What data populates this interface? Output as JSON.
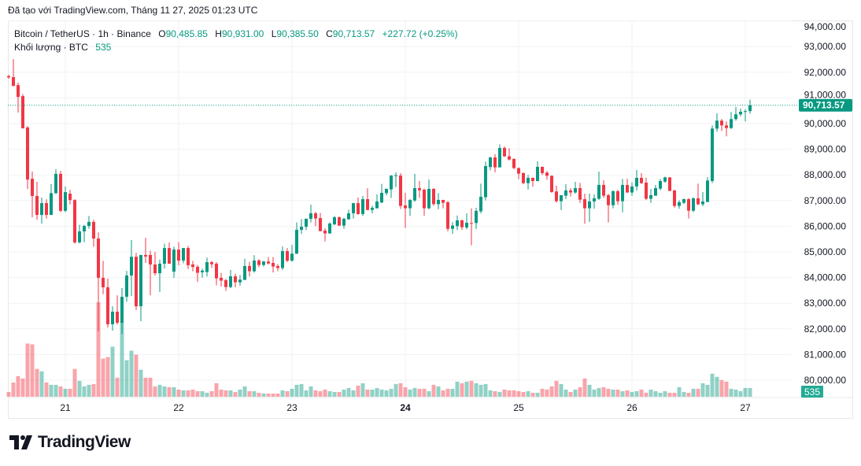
{
  "header": {
    "created_text": "Đã tạo với TradingView.com, Tháng 11 27, 2025 01:23 UTC"
  },
  "legend": {
    "symbol": "Bitcoin / TetherUS · 1h · Binance",
    "o_label": "O",
    "o_value": "90,485.85",
    "h_label": "H",
    "h_value": "90,931.00",
    "l_label": "L",
    "l_value": "90,385.50",
    "c_label": "C",
    "c_value": "90,713.57",
    "change": "+227.72 (+0.25%)",
    "volume_label": "Khối lượng · BTC",
    "volume_value": "535"
  },
  "price_label": "90,713.57",
  "volume_tag": "535",
  "logo": {
    "text": "TradingView"
  },
  "colors": {
    "up": "#089981",
    "down": "#F23645",
    "grid": "#f0f1f3"
  },
  "chart_data": {
    "type": "candlestick",
    "interval": "1h",
    "y_ticks": [
      "80,000.00",
      "81,000.00",
      "82,000.00",
      "83,000.00",
      "84,000.00",
      "85,000.00",
      "86,000.00",
      "87,000.00",
      "88,000.00",
      "89,000.00",
      "90,000.00",
      "91,000.00",
      "92,000.00",
      "93,000.00",
      "94,000.00"
    ],
    "y_tick_values": [
      80000,
      81000,
      82000,
      83000,
      84000,
      85000,
      86000,
      87000,
      88000,
      89000,
      90000,
      91000,
      92000,
      93000,
      94000
    ],
    "x_ticks": [
      {
        "label": "21",
        "index": 12
      },
      {
        "label": "22",
        "index": 36
      },
      {
        "label": "23",
        "index": 60
      },
      {
        "label": "24",
        "index": 84,
        "bold": true
      },
      {
        "label": "25",
        "index": 108
      },
      {
        "label": "26",
        "index": 132
      },
      {
        "label": "27",
        "index": 156
      }
    ],
    "last_price": 90713.57,
    "grid": true,
    "ohlc": [
      [
        91850,
        91900,
        91750,
        91800
      ],
      [
        91810,
        92510,
        91450,
        91470
      ],
      [
        91500,
        91600,
        90430,
        91040
      ],
      [
        91070,
        91150,
        89800,
        89820
      ],
      [
        89850,
        89900,
        87450,
        87820
      ],
      [
        87850,
        88130,
        86350,
        87180
      ],
      [
        87180,
        87730,
        86250,
        86440
      ],
      [
        86440,
        87120,
        86100,
        86900
      ],
      [
        86900,
        87050,
        86300,
        86440
      ],
      [
        86440,
        87640,
        86440,
        87290
      ],
      [
        87290,
        88220,
        87250,
        88040
      ],
      [
        88040,
        88160,
        86550,
        86600
      ],
      [
        86600,
        87550,
        86550,
        87330
      ],
      [
        87270,
        87420,
        86850,
        87020
      ],
      [
        87020,
        87050,
        85320,
        85370
      ],
      [
        85370,
        86060,
        85330,
        85800
      ],
      [
        85800,
        86060,
        85380,
        86010
      ],
      [
        86010,
        86400,
        85900,
        86170
      ],
      [
        86170,
        86250,
        85200,
        85520
      ],
      [
        85520,
        85760,
        81900,
        83990
      ],
      [
        83990,
        84650,
        83350,
        83620
      ],
      [
        83620,
        83960,
        82050,
        82180
      ],
      [
        82180,
        82880,
        81930,
        82670
      ],
      [
        82670,
        83310,
        82170,
        82240
      ],
      [
        82240,
        83590,
        81800,
        83250
      ],
      [
        83250,
        84260,
        83060,
        84080
      ],
      [
        84080,
        85460,
        83280,
        84810
      ],
      [
        84810,
        84960,
        82730,
        82880
      ],
      [
        82880,
        84880,
        82300,
        84880
      ],
      [
        84880,
        85550,
        84570,
        84820
      ],
      [
        84880,
        85050,
        83310,
        84510
      ],
      [
        84510,
        85000,
        84080,
        84170
      ],
      [
        84170,
        84700,
        83440,
        84540
      ],
      [
        84540,
        85320,
        84350,
        85150
      ],
      [
        85150,
        85370,
        84540,
        84540
      ],
      [
        84230,
        85200,
        83990,
        85090
      ],
      [
        85090,
        85380,
        84480,
        84660
      ],
      [
        84660,
        85150,
        84550,
        85150
      ],
      [
        85150,
        85230,
        84330,
        84480
      ],
      [
        84510,
        84650,
        84240,
        84410
      ],
      [
        84420,
        84490,
        83830,
        84185
      ],
      [
        84205,
        84350,
        83990,
        84270
      ],
      [
        84215,
        84780,
        84040,
        84600
      ],
      [
        84600,
        84650,
        84380,
        84520
      ],
      [
        84540,
        84600,
        83700,
        83970
      ],
      [
        83990,
        84180,
        83650,
        83880
      ],
      [
        83900,
        83950,
        83480,
        83630
      ],
      [
        83630,
        84300,
        83590,
        84050
      ],
      [
        84050,
        84150,
        83620,
        83815
      ],
      [
        83815,
        84100,
        83680,
        83920
      ],
      [
        83910,
        84730,
        83900,
        84450
      ],
      [
        84450,
        84620,
        84040,
        84245
      ],
      [
        84245,
        84870,
        84190,
        84665
      ],
      [
        84665,
        84720,
        84400,
        84490
      ],
      [
        84490,
        84650,
        84430,
        84625
      ],
      [
        84625,
        84800,
        84500,
        84550
      ],
      [
        84570,
        84800,
        84200,
        84430
      ],
      [
        84450,
        84520,
        84250,
        84370
      ],
      [
        84370,
        85210,
        84300,
        85030
      ],
      [
        85030,
        85150,
        84600,
        84655
      ],
      [
        84655,
        85280,
        84620,
        84930
      ],
      [
        84930,
        86150,
        84920,
        85860
      ],
      [
        85860,
        86280,
        85700,
        85980
      ],
      [
        85980,
        86300,
        85850,
        86290
      ],
      [
        86290,
        86840,
        86150,
        86505
      ],
      [
        86505,
        86560,
        86000,
        86300
      ],
      [
        86320,
        86520,
        85800,
        85810
      ],
      [
        85830,
        85920,
        85410,
        85720
      ],
      [
        85720,
        86150,
        85700,
        86105
      ],
      [
        86075,
        86400,
        86040,
        86350
      ],
      [
        86350,
        86380,
        86010,
        86025
      ],
      [
        86025,
        86330,
        85900,
        86290
      ],
      [
        86270,
        86640,
        86260,
        86505
      ],
      [
        86505,
        86910,
        86300,
        86900
      ],
      [
        86900,
        87120,
        86450,
        86475
      ],
      [
        86475,
        87180,
        86400,
        87055
      ],
      [
        87055,
        87480,
        86620,
        86635
      ],
      [
        86635,
        86800,
        86500,
        86720
      ],
      [
        86700,
        87240,
        86690,
        86965
      ],
      [
        86925,
        87650,
        86900,
        87300
      ],
      [
        87290,
        87470,
        87200,
        87455
      ],
      [
        87435,
        87990,
        87100,
        87975
      ],
      [
        87965,
        88100,
        87520,
        87986
      ],
      [
        87975,
        88070,
        86670,
        86790
      ],
      [
        86810,
        87300,
        85930,
        86700
      ],
      [
        86700,
        87060,
        86400,
        87025
      ],
      [
        87005,
        88040,
        86950,
        87485
      ],
      [
        87485,
        87760,
        87100,
        87400
      ],
      [
        87425,
        87470,
        86400,
        86700
      ],
      [
        86700,
        87820,
        86660,
        87455
      ],
      [
        87455,
        87490,
        86800,
        86860
      ],
      [
        86860,
        87290,
        86660,
        87025
      ],
      [
        87025,
        87030,
        86700,
        86915
      ],
      [
        86935,
        86980,
        85800,
        85900
      ],
      [
        85900,
        86160,
        85700,
        86025
      ],
      [
        86005,
        86420,
        85850,
        86230
      ],
      [
        86230,
        86260,
        85860,
        85960
      ],
      [
        85950,
        86500,
        85880,
        86135
      ],
      [
        86127,
        86700,
        85258,
        86125
      ],
      [
        86125,
        86720,
        85890,
        86600
      ],
      [
        86580,
        87660,
        86500,
        87150
      ],
      [
        87130,
        88520,
        87000,
        88345
      ],
      [
        88305,
        88710,
        88180,
        88680
      ],
      [
        88680,
        88810,
        88100,
        88295
      ],
      [
        88295,
        89190,
        88290,
        89050
      ],
      [
        89050,
        89110,
        88700,
        88725
      ],
      [
        88725,
        89040,
        88560,
        88600
      ],
      [
        88620,
        88650,
        88230,
        88265
      ],
      [
        88265,
        88290,
        87830,
        88050
      ],
      [
        88070,
        88100,
        87640,
        87680
      ],
      [
        87680,
        88000,
        87430,
        87885
      ],
      [
        87885,
        87900,
        87540,
        87760
      ],
      [
        87760,
        88530,
        87750,
        88315
      ],
      [
        88315,
        88330,
        88000,
        88070
      ],
      [
        88090,
        88150,
        87810,
        87965
      ],
      [
        87965,
        87980,
        87300,
        87335
      ],
      [
        87355,
        87580,
        86920,
        86975
      ],
      [
        86975,
        87210,
        86630,
        87210
      ],
      [
        87190,
        87640,
        87060,
        87395
      ],
      [
        87395,
        87490,
        87160,
        87315
      ],
      [
        87315,
        87730,
        87270,
        87485
      ],
      [
        87485,
        87690,
        86910,
        87035
      ],
      [
        87055,
        87270,
        86100,
        86700
      ],
      [
        86700,
        87270,
        86170,
        86965
      ],
      [
        86965,
        87240,
        86680,
        87090
      ],
      [
        87070,
        88130,
        87030,
        87610
      ],
      [
        87610,
        87790,
        87100,
        87190
      ],
      [
        87210,
        87270,
        86150,
        86820
      ],
      [
        86820,
        87400,
        86700,
        87365
      ],
      [
        87365,
        87420,
        86840,
        86975
      ],
      [
        86975,
        87840,
        86540,
        87610
      ],
      [
        87610,
        87850,
        87300,
        87315
      ],
      [
        87315,
        87710,
        87180,
        87550
      ],
      [
        87550,
        88190,
        87380,
        87885
      ],
      [
        87885,
        88070,
        87650,
        87680
      ],
      [
        87700,
        87890,
        87020,
        87070
      ],
      [
        87070,
        87450,
        86910,
        87210
      ],
      [
        87190,
        87610,
        87190,
        87485
      ],
      [
        87465,
        87840,
        87400,
        87760
      ],
      [
        87740,
        87930,
        87690,
        87905
      ],
      [
        87905,
        87910,
        87370,
        87375
      ],
      [
        87395,
        87420,
        86720,
        86790
      ],
      [
        86790,
        87010,
        86680,
        86935
      ],
      [
        86915,
        87080,
        86860,
        87055
      ],
      [
        87055,
        87100,
        86300,
        86605
      ],
      [
        86605,
        87120,
        86550,
        87090
      ],
      [
        87090,
        87660,
        86820,
        86855
      ],
      [
        86855,
        87330,
        86780,
        86965
      ],
      [
        86945,
        87910,
        86940,
        87780
      ],
      [
        87760,
        89930,
        87680,
        89805
      ],
      [
        89805,
        90400,
        89680,
        90115
      ],
      [
        90115,
        90180,
        89710,
        89930
      ],
      [
        89930,
        90090,
        89500,
        89825
      ],
      [
        89825,
        90450,
        89790,
        90175
      ],
      [
        90175,
        90650,
        90110,
        90360
      ],
      [
        90360,
        90590,
        90280,
        90460
      ],
      [
        90460,
        90560,
        90080,
        90485
      ],
      [
        90485.85,
        90931,
        90385.5,
        90713.57
      ]
    ],
    "volume": [
      294,
      882,
      1274,
      1127,
      3283,
      3234,
      1715,
      1568,
      882,
      735,
      735,
      637,
      490,
      490,
      1715,
      980,
      637,
      735,
      784,
      5831,
      2352,
      2450,
      3087,
      1176,
      4606,
      2254,
      2842,
      2597,
      1666,
      1176,
      1176,
      637,
      735,
      637,
      588,
      588,
      441,
      392,
      392,
      441,
      343,
      343,
      245,
      343,
      833,
      441,
      392,
      392,
      294,
      441,
      637,
      343,
      343,
      245,
      196,
      196,
      196,
      196,
      392,
      343,
      490,
      735,
      784,
      392,
      637,
      392,
      343,
      441,
      343,
      294,
      294,
      441,
      539,
      392,
      686,
      833,
      441,
      441,
      539,
      441,
      392,
      490,
      784,
      833,
      588,
      441,
      539,
      490,
      490,
      343,
      735,
      637,
      392,
      490,
      490,
      931,
      833,
      931,
      980,
      833,
      735,
      784,
      392,
      343,
      294,
      441,
      392,
      392,
      343,
      294,
      343,
      245,
      245,
      490,
      441,
      637,
      980,
      784,
      441,
      294,
      441,
      588,
      1127,
      735,
      441,
      539,
      588,
      490,
      441,
      441,
      343,
      392,
      294,
      343,
      441,
      245,
      441,
      343,
      245,
      343,
      245,
      245,
      588,
      294,
      245,
      490,
      490,
      833,
      735,
      1421,
      1225,
      1029,
      931,
      490,
      441,
      343,
      539,
      535
    ]
  }
}
